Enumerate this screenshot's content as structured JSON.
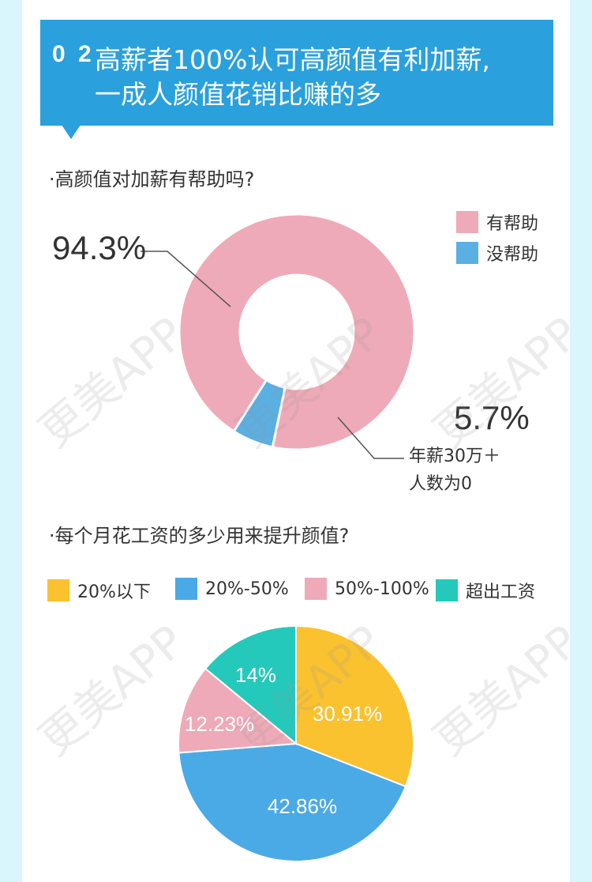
{
  "header": {
    "number": "0 2",
    "title_line1": "高薪者100%认可高颜值有利加薪,",
    "title_line2": "一成人颜值花销比赚的多"
  },
  "watermark": "更美APP",
  "section1": {
    "question": "·高颜值对加薪有帮助吗?",
    "big_label_main": "94.3%",
    "big_label_minor": "5.7%",
    "note_line1": "年薪30万＋",
    "note_line2": "人数为0"
  },
  "section2": {
    "question": "·每个月花工资的多少用来提升颜值?"
  },
  "chart_data": [
    {
      "type": "pie",
      "subtype": "donut",
      "title": "高颜值对加薪有帮助吗?",
      "categories": [
        "有帮助",
        "没帮助"
      ],
      "values": [
        94.3,
        5.7
      ],
      "colors": [
        "#eeaab8",
        "#5aafe3"
      ],
      "legend": "top-right"
    },
    {
      "type": "pie",
      "title": "每个月花工资的多少用来提升颜值?",
      "categories": [
        "20%以下",
        "20%-50%",
        "50%-100%",
        "超出工资"
      ],
      "values": [
        30.91,
        42.86,
        12.23,
        14
      ],
      "labels": [
        "30.91%",
        "42.86%",
        "12.23%",
        "14%"
      ],
      "colors": [
        "#fbc230",
        "#4aaae6",
        "#eeaab8",
        "#25c9bc"
      ],
      "legend": "top"
    }
  ]
}
